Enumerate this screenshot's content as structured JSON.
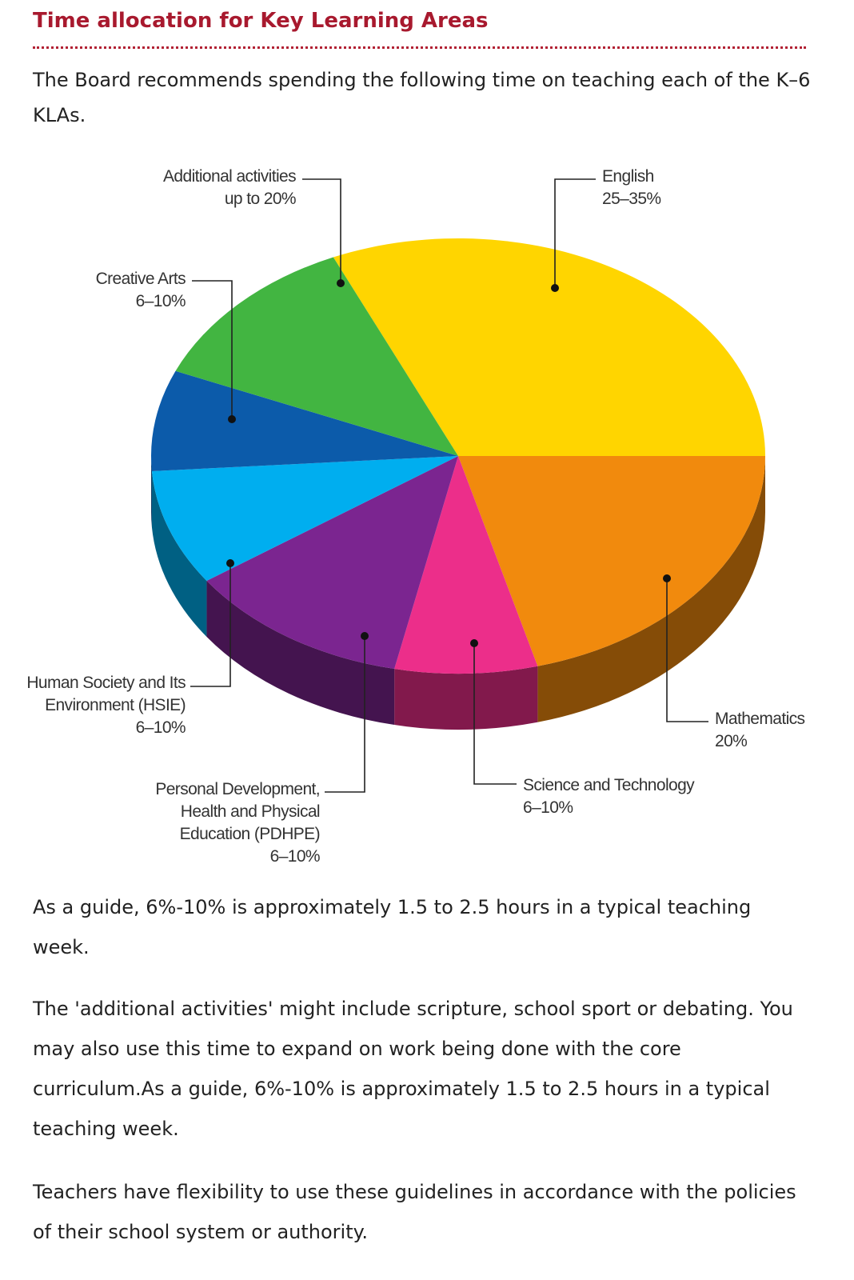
{
  "heading": "Time allocation for Key Learning Areas",
  "intro": "The Board recommends spending the following time on teaching each of the K–6 KLAs.",
  "chart_data": {
    "type": "pie",
    "title": "",
    "slices": [
      {
        "id": "english",
        "label_lines": [
          "English"
        ],
        "value_text": "25–35%",
        "value": 30,
        "color": "#FFD500"
      },
      {
        "id": "mathematics",
        "label_lines": [
          "Mathematics"
        ],
        "value_text": "20%",
        "value": 20,
        "color": "#F18A0D"
      },
      {
        "id": "science",
        "label_lines": [
          "Science and Technology"
        ],
        "value_text": "6–10%",
        "value": 8,
        "color": "#EC2E8A"
      },
      {
        "id": "pdhpe",
        "label_lines": [
          "Personal Development,",
          "Health and Physical",
          "Education (PDHPE)"
        ],
        "value_text": "6–10%",
        "value": 8,
        "color": "#7B2590"
      },
      {
        "id": "hsie",
        "label_lines": [
          "Human Society and Its",
          "Environment (HSIE)"
        ],
        "value_text": "6–10%",
        "value": 8,
        "color": "#00AEEF"
      },
      {
        "id": "creative",
        "label_lines": [
          "Creative Arts"
        ],
        "value_text": "6–10%",
        "value": 8,
        "color": "#0C5BAA"
      },
      {
        "id": "additional",
        "label_lines": [
          "Additional activities"
        ],
        "value_text": "up to 20%",
        "value": 18,
        "color": "#42B541"
      }
    ]
  },
  "guide": "As a guide, 6%-10% is approximately 1.5 to 2.5 hours in a typical teaching week.",
  "additional": "The 'additional activities' might include scripture, school sport or debating. You may also use this time to expand on work being done with the core curriculum.As a guide, 6%-10% is approximately 1.5 to 2.5 hours in a typical teaching week.",
  "flex": "Teachers have flexibility to use these guidelines in accordance with the policies of their school system or authority."
}
